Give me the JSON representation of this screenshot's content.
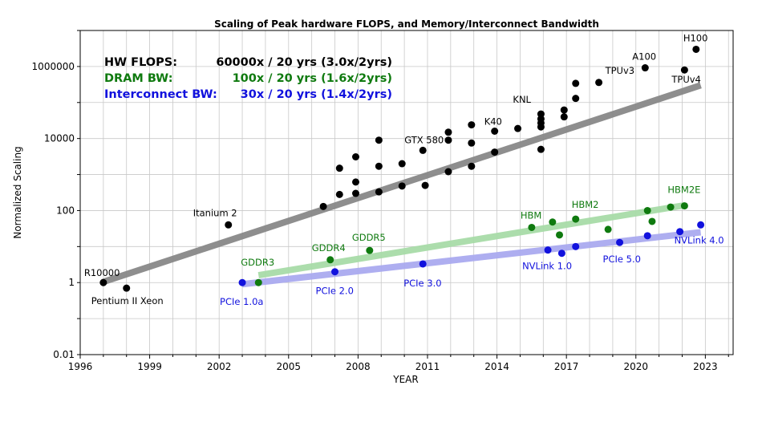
{
  "chart_data": {
    "type": "scatter",
    "title": "Scaling of Peak hardware FLOPS, and Memory/Interconnect Bandwidth",
    "xlabel": "YEAR",
    "ylabel": "Normalized Scaling",
    "xlim": [
      1996,
      2024.2
    ],
    "ylim": [
      0.01,
      10000000
    ],
    "yscale": "log",
    "grid": true,
    "x_ticks": [
      1996,
      1999,
      2002,
      2005,
      2008,
      2011,
      2014,
      2017,
      2020,
      2023
    ],
    "y_ticks": [
      {
        "value": 0.01,
        "label": "0.01"
      },
      {
        "value": 1,
        "label": "1"
      },
      {
        "value": 100,
        "label": "100"
      },
      {
        "value": 10000,
        "label": "10000"
      },
      {
        "value": 1000000,
        "label": "1000000"
      }
    ],
    "summary": [
      {
        "name": "HW FLOPS:",
        "value": "60000x / 20 yrs (3.0x/2yrs)",
        "color": "#000000"
      },
      {
        "name": "DRAM BW:",
        "value": "100x / 20 yrs (1.6x/2yrs)",
        "color": "#0f7a0f"
      },
      {
        "name": "Interconnect BW:",
        "value": "30x / 20 yrs (1.4x/2yrs)",
        "color": "#1111dd"
      }
    ],
    "series": [
      {
        "name": "HW FLOPS",
        "color": "#000000",
        "trend": {
          "x": [
            1997,
            2022.8
          ],
          "y": [
            1.05,
            300000
          ],
          "color": "#888888"
        },
        "points": [
          {
            "x": 1997.0,
            "y": 1.0,
            "label": "R10000"
          },
          {
            "x": 1998.0,
            "y": 0.7,
            "label": "Pentium II Xeon"
          },
          {
            "x": 2002.4,
            "y": 40,
            "label": "Itanium 2"
          },
          {
            "x": 2006.5,
            "y": 130
          },
          {
            "x": 2007.2,
            "y": 280
          },
          {
            "x": 2007.2,
            "y": 1500
          },
          {
            "x": 2007.9,
            "y": 300
          },
          {
            "x": 2007.9,
            "y": 620
          },
          {
            "x": 2007.9,
            "y": 3100
          },
          {
            "x": 2008.9,
            "y": 330
          },
          {
            "x": 2008.9,
            "y": 1700
          },
          {
            "x": 2008.9,
            "y": 9000
          },
          {
            "x": 2009.9,
            "y": 480
          },
          {
            "x": 2009.9,
            "y": 2000
          },
          {
            "x": 2010.8,
            "y": 4700,
            "label": "GTX 580"
          },
          {
            "x": 2010.9,
            "y": 500
          },
          {
            "x": 2011.9,
            "y": 1200
          },
          {
            "x": 2011.9,
            "y": 9000
          },
          {
            "x": 2011.9,
            "y": 15000
          },
          {
            "x": 2012.9,
            "y": 1700
          },
          {
            "x": 2012.9,
            "y": 7500
          },
          {
            "x": 2012.9,
            "y": 24000
          },
          {
            "x": 2013.9,
            "y": 4200
          },
          {
            "x": 2013.9,
            "y": 16000,
            "label": "K40"
          },
          {
            "x": 2014.9,
            "y": 19000
          },
          {
            "x": 2015.9,
            "y": 5000
          },
          {
            "x": 2015.9,
            "y": 21000
          },
          {
            "x": 2015.9,
            "y": 27000
          },
          {
            "x": 2015.9,
            "y": 35000
          },
          {
            "x": 2015.9,
            "y": 48000,
            "label": "KNL"
          },
          {
            "x": 2016.9,
            "y": 40000
          },
          {
            "x": 2016.9,
            "y": 62000
          },
          {
            "x": 2017.4,
            "y": 130000
          },
          {
            "x": 2017.4,
            "y": 340000
          },
          {
            "x": 2018.4,
            "y": 360000,
            "label": "TPUv3"
          },
          {
            "x": 2020.4,
            "y": 920000,
            "label": "A100"
          },
          {
            "x": 2022.1,
            "y": 800000,
            "label": "TPUv4"
          },
          {
            "x": 2022.6,
            "y": 3000000,
            "label": "H100"
          }
        ]
      },
      {
        "name": "DRAM BW",
        "color": "#0f7a0f",
        "trend": {
          "x": [
            2003.7,
            2022.1
          ],
          "y": [
            1.6,
            140
          ],
          "color": "#a8dca8"
        },
        "points": [
          {
            "x": 2003.7,
            "y": 1.0,
            "label": "GDDR3"
          },
          {
            "x": 2006.8,
            "y": 4.3,
            "label": "GDDR4"
          },
          {
            "x": 2008.5,
            "y": 7.8,
            "label": "GDDR5"
          },
          {
            "x": 2015.5,
            "y": 34,
            "label": "HBM"
          },
          {
            "x": 2016.4,
            "y": 48
          },
          {
            "x": 2016.7,
            "y": 21
          },
          {
            "x": 2017.4,
            "y": 58,
            "label": "HBM2"
          },
          {
            "x": 2018.8,
            "y": 30
          },
          {
            "x": 2020.5,
            "y": 100
          },
          {
            "x": 2020.7,
            "y": 50
          },
          {
            "x": 2021.5,
            "y": 125
          },
          {
            "x": 2022.1,
            "y": 135,
            "label": "HBM2E"
          }
        ]
      },
      {
        "name": "Interconnect BW",
        "color": "#1111dd",
        "trend": {
          "x": [
            2003.0,
            2022.8
          ],
          "y": [
            0.9,
            25
          ],
          "color": "#aaaaf0"
        },
        "points": [
          {
            "x": 2003.0,
            "y": 1.0,
            "label": "PCIe 1.0a"
          },
          {
            "x": 2007.0,
            "y": 2.0,
            "label": "PCIe 2.0"
          },
          {
            "x": 2010.8,
            "y": 3.3,
            "label": "PCIe 3.0"
          },
          {
            "x": 2016.2,
            "y": 8.0,
            "label": "NVLink 1.0"
          },
          {
            "x": 2016.8,
            "y": 6.5
          },
          {
            "x": 2017.4,
            "y": 10
          },
          {
            "x": 2019.3,
            "y": 13,
            "label": "PCIe 5.0"
          },
          {
            "x": 2020.5,
            "y": 20
          },
          {
            "x": 2021.9,
            "y": 26
          },
          {
            "x": 2022.8,
            "y": 40,
            "label": "NVLink 4.0"
          }
        ]
      }
    ]
  }
}
